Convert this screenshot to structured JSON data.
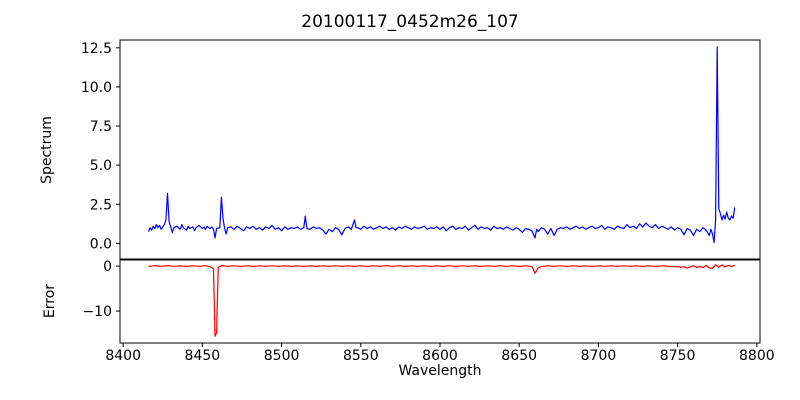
{
  "figure": {
    "title": "20100117_0452m26_107",
    "xlabel": "Wavelength",
    "background": "#ffffff",
    "axis_color": "#000000"
  },
  "xticks": [
    8400,
    8450,
    8500,
    8550,
    8600,
    8650,
    8700,
    8750,
    8800
  ],
  "xtick_labels": [
    "8400",
    "8450",
    "8500",
    "8550",
    "8600",
    "8650",
    "8700",
    "8750",
    "8800"
  ],
  "chart_data": [
    {
      "type": "line",
      "name": "spectrum",
      "ylabel": "Spectrum",
      "color": "#0000ff",
      "xlim": [
        8398,
        8802
      ],
      "ylim": [
        -1.0,
        13.0
      ],
      "yticks": [
        0.0,
        2.5,
        5.0,
        7.5,
        10.0,
        12.5
      ],
      "ytick_labels": [
        "0.0",
        "2.5",
        "5.0",
        "7.5",
        "10.0",
        "12.5"
      ],
      "x": [
        8416,
        8417,
        8418,
        8419,
        8420,
        8421,
        8422,
        8423,
        8424,
        8425,
        8426,
        8427,
        8428,
        8429,
        8430,
        8431,
        8432,
        8434,
        8436,
        8437,
        8438,
        8440,
        8441,
        8442,
        8444,
        8445,
        8446,
        8448,
        8450,
        8451,
        8452,
        8453,
        8454,
        8455,
        8456,
        8457,
        8458,
        8459,
        8461,
        8462,
        8463,
        8464,
        8465,
        8466,
        8468,
        8470,
        8472,
        8474,
        8476,
        8478,
        8480,
        8482,
        8484,
        8486,
        8488,
        8490,
        8492,
        8494,
        8496,
        8498,
        8500,
        8502,
        8504,
        8506,
        8508,
        8510,
        8512,
        8514,
        8515,
        8516,
        8518,
        8520,
        8522,
        8524,
        8526,
        8528,
        8530,
        8532,
        8534,
        8536,
        8538,
        8540,
        8542,
        8544,
        8546,
        8547,
        8548,
        8550,
        8552,
        8554,
        8556,
        8558,
        8560,
        8562,
        8564,
        8566,
        8568,
        8570,
        8572,
        8574,
        8576,
        8578,
        8580,
        8582,
        8584,
        8586,
        8588,
        8590,
        8592,
        8594,
        8596,
        8598,
        8600,
        8602,
        8604,
        8606,
        8608,
        8610,
        8612,
        8614,
        8616,
        8618,
        8620,
        8622,
        8624,
        8626,
        8628,
        8630,
        8632,
        8634,
        8636,
        8638,
        8640,
        8642,
        8644,
        8646,
        8648,
        8650,
        8652,
        8654,
        8656,
        8658,
        8660,
        8661,
        8662,
        8664,
        8666,
        8668,
        8670,
        8672,
        8674,
        8676,
        8678,
        8680,
        8682,
        8684,
        8686,
        8688,
        8690,
        8692,
        8694,
        8696,
        8698,
        8700,
        8702,
        8704,
        8706,
        8708,
        8710,
        8712,
        8714,
        8716,
        8718,
        8720,
        8722,
        8724,
        8726,
        8728,
        8730,
        8732,
        8734,
        8736,
        8738,
        8740,
        8742,
        8744,
        8746,
        8748,
        8750,
        8752,
        8754,
        8756,
        8758,
        8760,
        8762,
        8764,
        8766,
        8768,
        8770,
        8771,
        8772,
        8773,
        8774,
        8775,
        8776,
        8777,
        8778,
        8779,
        8780,
        8781,
        8782,
        8783,
        8784,
        8785,
        8786
      ],
      "y": [
        0.75,
        1.0,
        0.85,
        1.1,
        0.95,
        1.2,
        1.0,
        1.15,
        0.9,
        1.05,
        1.2,
        1.5,
        3.2,
        1.4,
        1.05,
        0.7,
        1.0,
        1.1,
        0.9,
        1.2,
        1.0,
        0.85,
        1.1,
        0.95,
        1.05,
        0.8,
        1.0,
        1.15,
        0.95,
        1.05,
        0.9,
        1.1,
        1.0,
        0.95,
        1.05,
        0.9,
        0.35,
        0.95,
        1.0,
        2.95,
        1.6,
        0.95,
        0.6,
        1.0,
        1.05,
        0.9,
        1.1,
        0.95,
        0.8,
        1.05,
        0.95,
        1.1,
        0.9,
        1.0,
        0.85,
        1.05,
        0.95,
        1.15,
        0.9,
        1.0,
        0.8,
        1.05,
        0.9,
        1.0,
        0.95,
        1.05,
        0.9,
        1.0,
        1.75,
        0.95,
        0.9,
        1.05,
        0.95,
        1.0,
        0.85,
        0.6,
        0.9,
        0.75,
        1.0,
        0.9,
        0.55,
        0.95,
        1.05,
        0.9,
        1.5,
        1.0,
        1.0,
        0.9,
        1.1,
        0.95,
        1.05,
        0.9,
        1.0,
        1.1,
        0.95,
        1.05,
        0.9,
        1.0,
        0.85,
        1.05,
        0.95,
        1.1,
        1.0,
        0.9,
        1.05,
        0.95,
        1.0,
        1.1,
        0.9,
        1.0,
        0.95,
        1.05,
        0.9,
        1.05,
        0.8,
        1.0,
        1.1,
        0.9,
        1.0,
        0.95,
        1.1,
        0.85,
        1.0,
        1.15,
        0.9,
        1.05,
        0.95,
        1.0,
        0.85,
        1.1,
        0.95,
        1.0,
        0.9,
        1.05,
        0.95,
        0.85,
        1.0,
        0.9,
        0.7,
        0.95,
        0.9,
        0.8,
        0.35,
        0.9,
        0.75,
        1.0,
        0.9,
        0.6,
        0.95,
        0.5,
        0.9,
        1.0,
        0.95,
        1.05,
        0.9,
        1.0,
        1.1,
        0.95,
        1.05,
        0.9,
        1.0,
        1.1,
        0.95,
        1.0,
        1.15,
        0.9,
        1.05,
        1.0,
        0.9,
        1.1,
        1.0,
        0.95,
        1.2,
        1.0,
        1.1,
        0.95,
        1.25,
        1.05,
        1.3,
        1.1,
        1.0,
        1.2,
        0.95,
        1.1,
        1.0,
        0.9,
        1.05,
        0.85,
        1.0,
        0.9,
        0.55,
        0.95,
        0.85,
        0.5,
        0.9,
        0.75,
        1.0,
        0.85,
        0.5,
        0.9,
        0.6,
        0.05,
        1.5,
        12.55,
        2.2,
        1.9,
        1.5,
        1.8,
        1.55,
        2.0,
        1.6,
        1.5,
        1.75,
        1.6,
        2.3
      ]
    },
    {
      "type": "line",
      "name": "error",
      "ylabel": "Error",
      "color": "#ff0000",
      "xlim": [
        8398,
        8802
      ],
      "ylim": [
        -17.1,
        1.35
      ],
      "yticks": [
        0,
        -10
      ],
      "ytick_labels": [
        "0",
        "−10"
      ],
      "x": [
        8416,
        8420,
        8424,
        8428,
        8432,
        8436,
        8440,
        8444,
        8448,
        8452,
        8455,
        8457,
        8458,
        8459,
        8460,
        8462,
        8466,
        8470,
        8474,
        8478,
        8482,
        8486,
        8490,
        8494,
        8498,
        8502,
        8506,
        8510,
        8514,
        8518,
        8522,
        8526,
        8530,
        8534,
        8538,
        8542,
        8546,
        8550,
        8554,
        8558,
        8562,
        8566,
        8570,
        8574,
        8578,
        8582,
        8586,
        8590,
        8594,
        8598,
        8602,
        8606,
        8610,
        8614,
        8618,
        8622,
        8626,
        8630,
        8634,
        8638,
        8642,
        8646,
        8650,
        8654,
        8658,
        8660,
        8662,
        8664,
        8668,
        8672,
        8676,
        8680,
        8684,
        8688,
        8692,
        8696,
        8700,
        8704,
        8708,
        8712,
        8716,
        8720,
        8724,
        8728,
        8732,
        8736,
        8740,
        8744,
        8748,
        8750,
        8752,
        8754,
        8756,
        8758,
        8760,
        8762,
        8764,
        8766,
        8768,
        8770,
        8772,
        8774,
        8776,
        8778,
        8780,
        8782,
        8784,
        8786
      ],
      "y": [
        -0.05,
        0.08,
        -0.06,
        0.1,
        -0.05,
        0.07,
        -0.08,
        0.05,
        -0.05,
        0.08,
        -0.15,
        -0.6,
        -15.6,
        -14.8,
        -0.3,
        0.1,
        -0.05,
        0.07,
        -0.06,
        0.05,
        -0.08,
        0.06,
        -0.05,
        0.08,
        -0.06,
        0.05,
        -0.07,
        0.06,
        -0.05,
        0.07,
        -0.08,
        0.05,
        -0.06,
        0.08,
        -0.05,
        0.06,
        -0.07,
        0.05,
        -0.06,
        0.07,
        -0.05,
        0.08,
        -0.06,
        0.05,
        -0.07,
        0.06,
        -0.05,
        0.07,
        -0.06,
        0.05,
        -0.08,
        0.06,
        -0.05,
        0.07,
        -0.06,
        0.05,
        -0.07,
        0.06,
        -0.05,
        0.08,
        -0.06,
        0.05,
        -0.07,
        0.06,
        -0.1,
        -1.6,
        -0.4,
        -0.1,
        0.06,
        -0.05,
        0.07,
        -0.06,
        0.05,
        -0.07,
        0.06,
        -0.05,
        0.07,
        -0.06,
        0.05,
        -0.06,
        0.07,
        -0.05,
        0.06,
        -0.07,
        0.05,
        -0.06,
        0.06,
        -0.08,
        -0.15,
        -0.1,
        -0.25,
        -0.15,
        -0.45,
        -0.2,
        0.1,
        -0.3,
        -0.1,
        -0.35,
        0.15,
        -0.4,
        -0.5,
        0.3,
        -0.25,
        0.25,
        -0.2,
        0.15,
        -0.1,
        0.2
      ]
    }
  ]
}
